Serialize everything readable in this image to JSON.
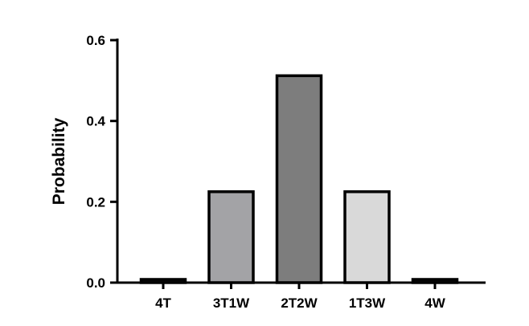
{
  "chart_data": {
    "type": "bar",
    "title": "",
    "xlabel": "",
    "ylabel": "Probability",
    "categories": [
      "4T",
      "3T1W",
      "2T2W",
      "1T3W",
      "4W"
    ],
    "values": [
      0.008,
      0.225,
      0.512,
      0.225,
      0.008
    ],
    "bar_colors": [
      "#111111",
      "#a3a3a6",
      "#7d7d7d",
      "#d9d9d9",
      "#111111"
    ],
    "ylim": [
      0,
      0.6
    ],
    "yticks": [
      0.0,
      0.2,
      0.4,
      0.6
    ],
    "ytick_labels": [
      "0.0",
      "0.2",
      "0.4",
      "0.6"
    ],
    "grid": false,
    "legend": "none"
  }
}
